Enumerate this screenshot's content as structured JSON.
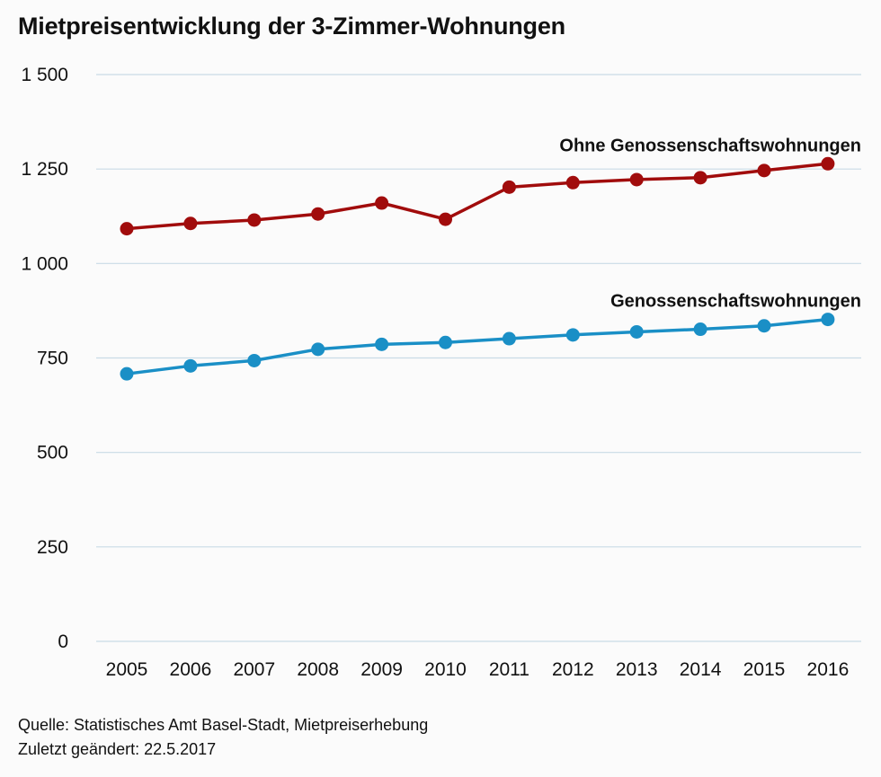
{
  "title": "Mietpreisentwicklung der 3-Zimmer-Wohnungen",
  "footer": {
    "source": "Quelle: Statistisches Amt Basel-Stadt, Mietpreiserhebung",
    "updated": "Zuletzt geändert: 22.5.2017"
  },
  "chart_data": {
    "type": "line",
    "title": "Mietpreisentwicklung der 3-Zimmer-Wohnungen",
    "x": [
      "2005",
      "2006",
      "2007",
      "2008",
      "2009",
      "2010",
      "2011",
      "2012",
      "2013",
      "2014",
      "2015",
      "2016"
    ],
    "ylim": [
      0,
      1500
    ],
    "yticks": [
      0,
      250,
      500,
      750,
      1000,
      1250,
      1500
    ],
    "ytick_labels": [
      "0",
      "250",
      "500",
      "750",
      "1 000",
      "1 250",
      "1 500"
    ],
    "grid": "horizontal",
    "series": [
      {
        "name": "Ohne Genossenschaftswohnungen",
        "color": "#a10c0c",
        "values": [
          1092,
          1106,
          1115,
          1131,
          1160,
          1117,
          1202,
          1214,
          1222,
          1227,
          1246,
          1264
        ]
      },
      {
        "name": "Genossenschaftswohnungen",
        "color": "#1a8fc6",
        "values": [
          708,
          729,
          743,
          773,
          786,
          791,
          801,
          811,
          819,
          826,
          835,
          852
        ]
      }
    ]
  }
}
